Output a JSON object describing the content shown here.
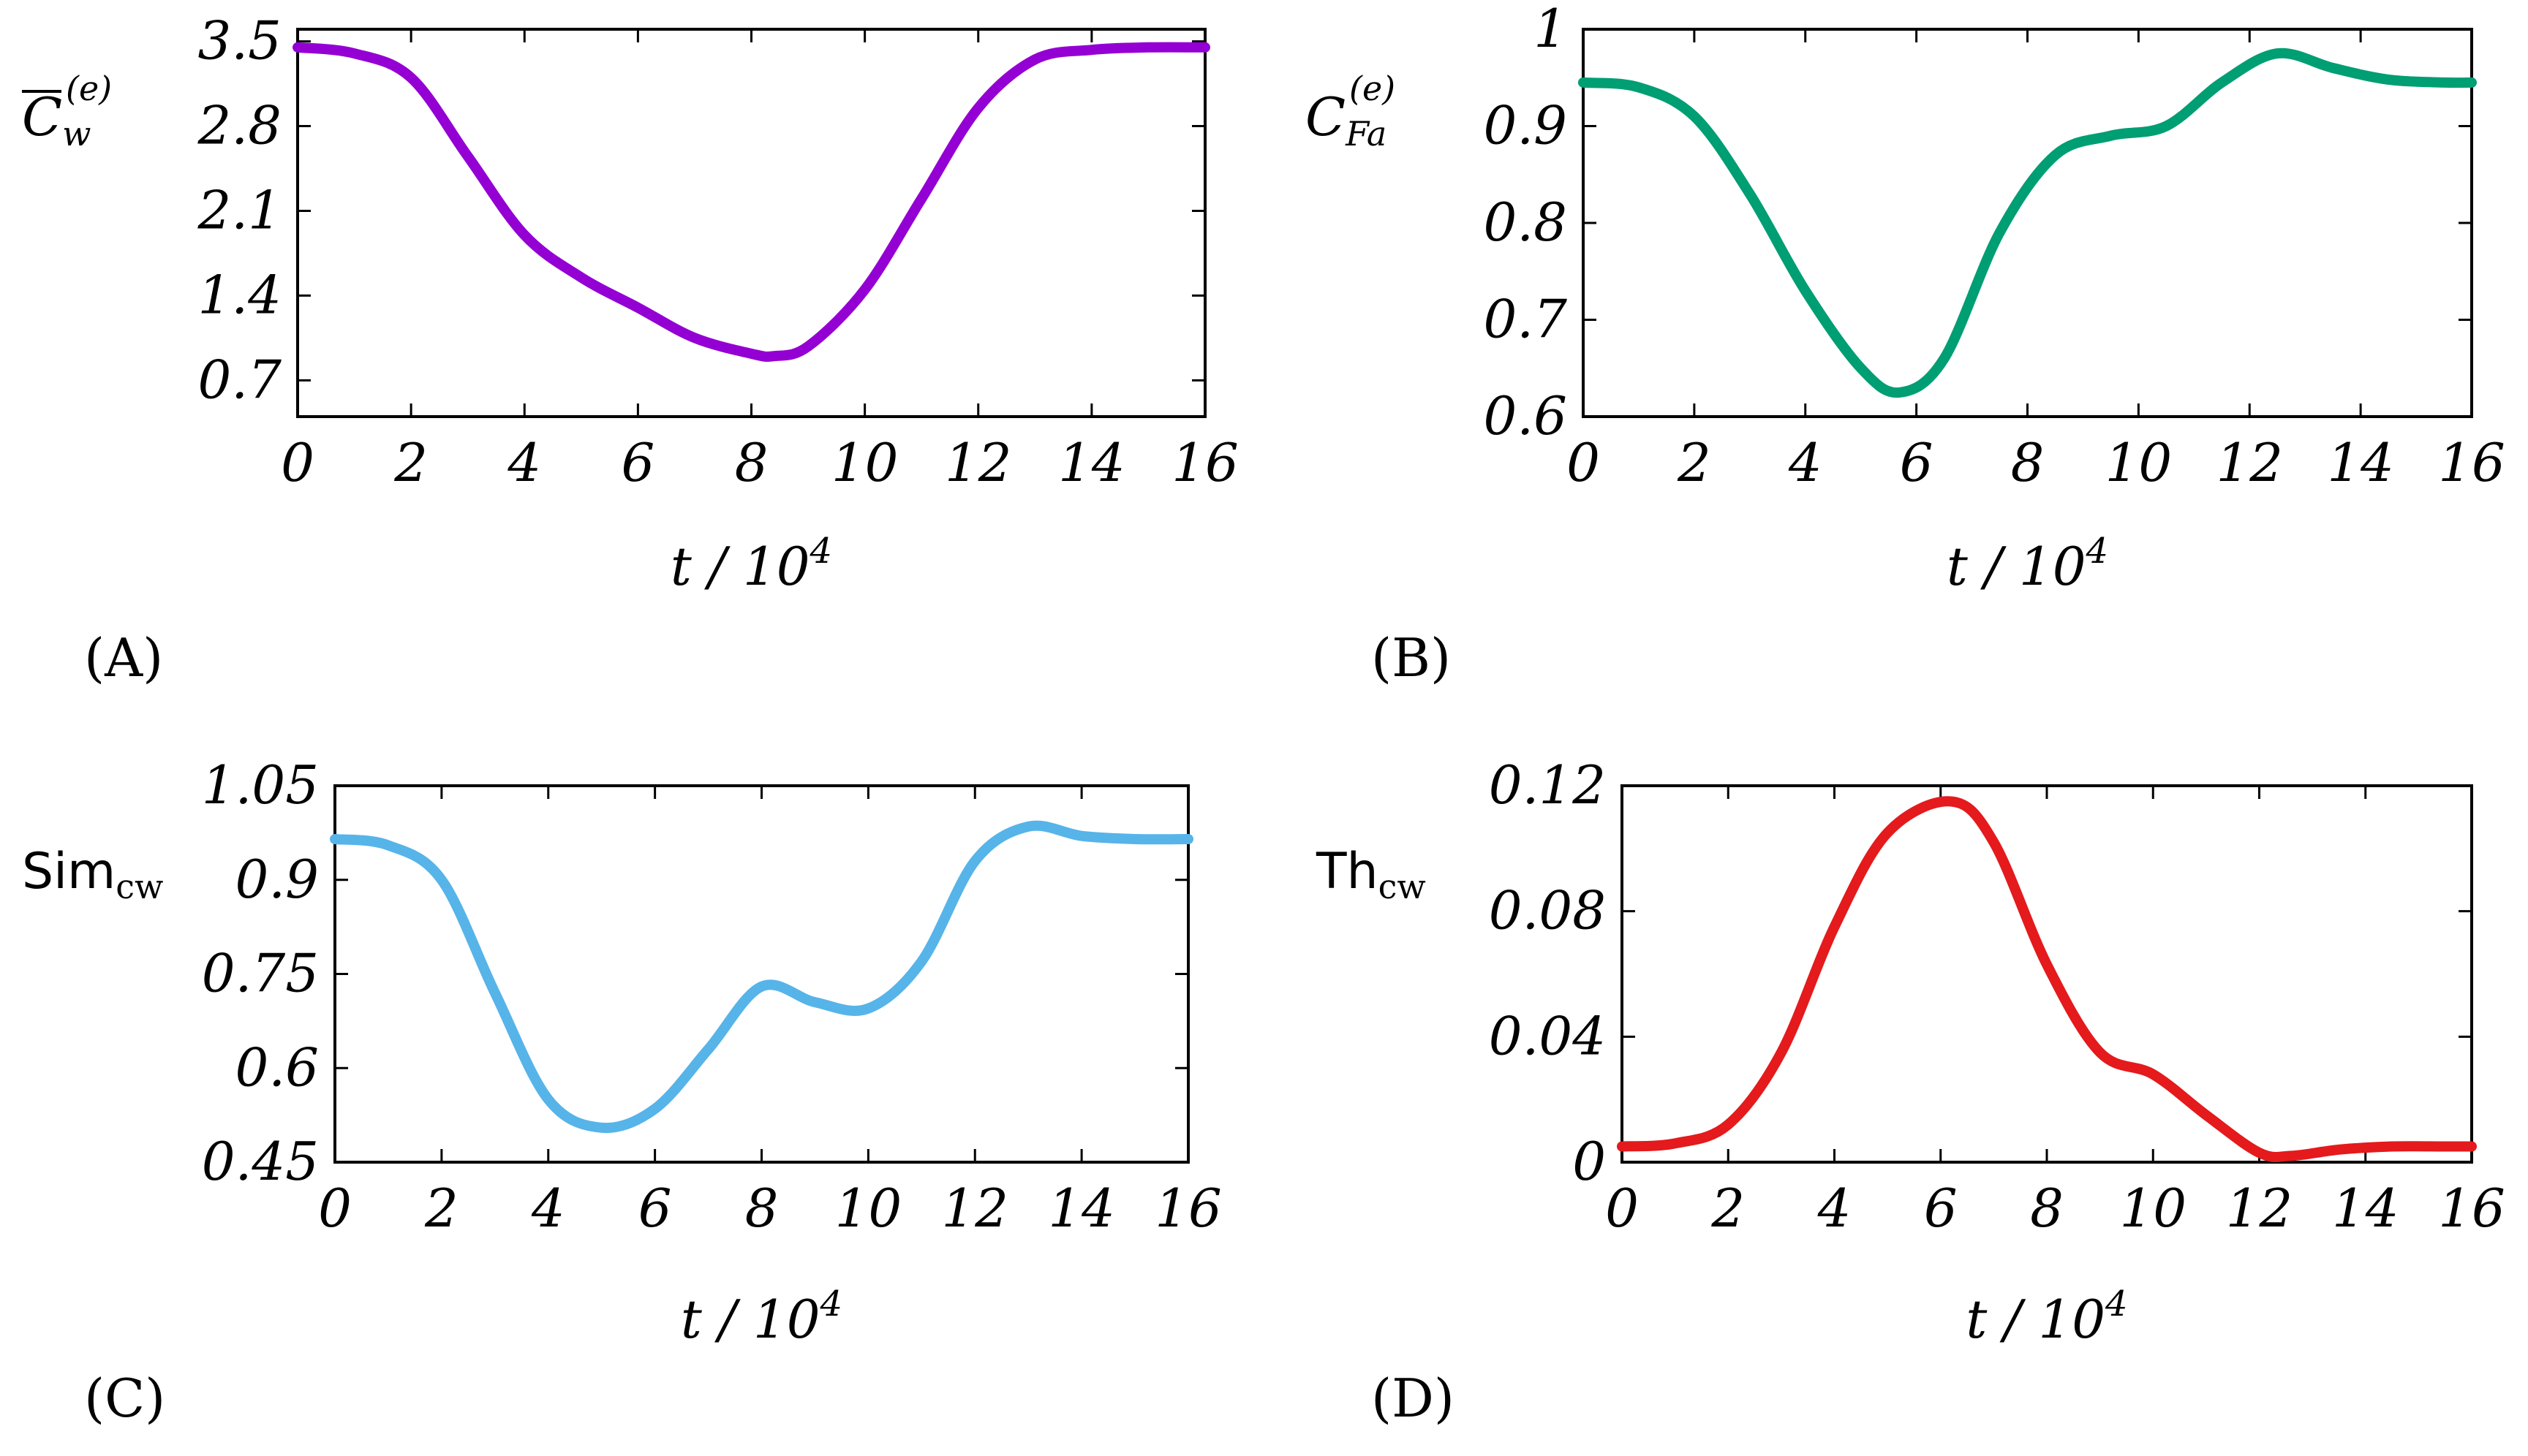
{
  "chart_data": [
    {
      "type": "line",
      "panel_label": "(A)",
      "ylabel": "C̄w(e)",
      "ylabel_main": "C",
      "ylabel_sub": "w",
      "ylabel_sup": "(e)",
      "ylabel_bar": true,
      "xlabel": "t / 10",
      "xlabel_sup": "4",
      "color": "#9400d3",
      "xlim": [
        0,
        16
      ],
      "ylim": [
        0.4,
        3.6
      ],
      "xticks": [
        0,
        2,
        4,
        6,
        8,
        10,
        12,
        14,
        16
      ],
      "yticks": [
        0.7,
        1.4,
        2.1,
        2.8,
        3.5
      ],
      "ytick_labels": [
        "0.7",
        "1.4",
        "2.1",
        "2.8",
        "3.5"
      ],
      "series": [
        {
          "name": "C_w",
          "x": [
            0,
            1,
            2,
            3,
            4,
            5,
            6,
            7,
            8,
            8.4,
            9,
            10,
            11,
            12,
            13,
            14,
            15,
            16
          ],
          "y": [
            3.45,
            3.4,
            3.2,
            2.55,
            1.9,
            1.55,
            1.3,
            1.05,
            0.92,
            0.9,
            0.98,
            1.45,
            2.2,
            2.95,
            3.35,
            3.43,
            3.45,
            3.45
          ]
        }
      ]
    },
    {
      "type": "line",
      "panel_label": "(B)",
      "ylabel": "CFa(e)",
      "ylabel_main": "C",
      "ylabel_sub": "Fa",
      "ylabel_sup": "(e)",
      "ylabel_bar": false,
      "xlabel": "t / 10",
      "xlabel_sup": "4",
      "color": "#009e73",
      "xlim": [
        0,
        16
      ],
      "ylim": [
        0.6,
        1.0
      ],
      "xticks": [
        0,
        2,
        4,
        6,
        8,
        10,
        12,
        14,
        16
      ],
      "yticks": [
        0.6,
        0.7,
        0.8,
        0.9,
        1.0
      ],
      "ytick_labels": [
        "0.6",
        "0.7",
        "0.8",
        "0.9",
        "1"
      ],
      "series": [
        {
          "name": "C_Fa",
          "x": [
            0,
            1,
            2,
            3,
            4,
            5,
            5.7,
            6.5,
            7.5,
            8.5,
            9.5,
            10.5,
            11.5,
            12.5,
            13.5,
            14.5,
            15.5,
            16
          ],
          "y": [
            0.945,
            0.94,
            0.91,
            0.83,
            0.73,
            0.65,
            0.625,
            0.66,
            0.79,
            0.87,
            0.89,
            0.9,
            0.945,
            0.975,
            0.96,
            0.948,
            0.945,
            0.945
          ]
        }
      ]
    },
    {
      "type": "line",
      "panel_label": "(C)",
      "ylabel": "Simcw",
      "ylabel_main": "Sim",
      "ylabel_sub": "cw",
      "ylabel_bar": false,
      "xlabel": "t / 10",
      "xlabel_sup": "4",
      "color": "#56b4e9",
      "xlim": [
        0,
        16
      ],
      "ylim": [
        0.45,
        1.05
      ],
      "xticks": [
        0,
        2,
        4,
        6,
        8,
        10,
        12,
        14,
        16
      ],
      "yticks": [
        0.45,
        0.6,
        0.75,
        0.9,
        1.05
      ],
      "ytick_labels": [
        "0.45",
        "0.6",
        "0.75",
        "0.9",
        "1.05"
      ],
      "series": [
        {
          "name": "Sim_cw",
          "x": [
            0,
            1,
            2,
            3,
            4,
            5,
            6,
            7,
            8,
            9,
            10,
            11,
            12,
            13,
            14,
            15,
            16
          ],
          "y": [
            0.965,
            0.955,
            0.9,
            0.72,
            0.55,
            0.505,
            0.535,
            0.63,
            0.73,
            0.705,
            0.695,
            0.77,
            0.93,
            0.985,
            0.97,
            0.965,
            0.965
          ]
        }
      ]
    },
    {
      "type": "line",
      "panel_label": "(D)",
      "ylabel": "Thcw",
      "ylabel_main": "Th",
      "ylabel_sub": "cw",
      "ylabel_bar": false,
      "xlabel": "t / 10",
      "xlabel_sup": "4",
      "color": "#e41a1c",
      "xlim": [
        0,
        16
      ],
      "ylim": [
        0,
        0.12
      ],
      "xticks": [
        0,
        2,
        4,
        6,
        8,
        10,
        12,
        14,
        16
      ],
      "yticks": [
        0,
        0.04,
        0.08,
        0.12
      ],
      "ytick_labels": [
        "0",
        "0.04",
        "0.08",
        "0.12"
      ],
      "series": [
        {
          "name": "Th_cw",
          "x": [
            0,
            1,
            2,
            3,
            4,
            5,
            6.2,
            7,
            8,
            9,
            10,
            11,
            12,
            12.6,
            13.5,
            14.5,
            15.5,
            16
          ],
          "y": [
            0.005,
            0.006,
            0.012,
            0.035,
            0.075,
            0.105,
            0.115,
            0.102,
            0.063,
            0.035,
            0.028,
            0.015,
            0.003,
            0.002,
            0.004,
            0.005,
            0.005,
            0.005
          ]
        }
      ]
    }
  ]
}
